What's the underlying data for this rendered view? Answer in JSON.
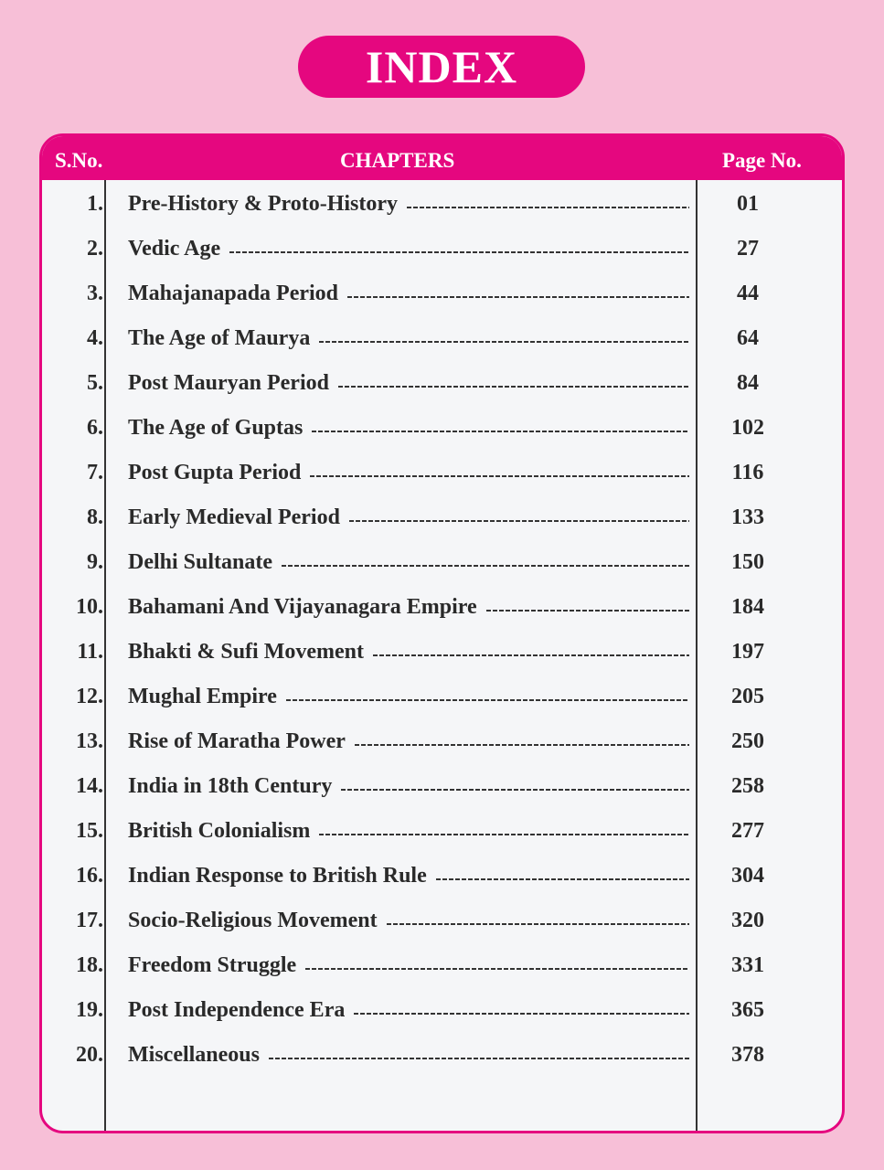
{
  "title": "INDEX",
  "header": {
    "sno": "S.No.",
    "chapters": "CHAPTERS",
    "page": "Page No."
  },
  "colors": {
    "accent": "#e5077f",
    "background": "#f7bfd7",
    "panel": "#f5f6f8"
  },
  "rows": [
    {
      "sno": "1.",
      "chapter": "Pre-History & Proto-History",
      "page": "01"
    },
    {
      "sno": "2.",
      "chapter": "Vedic Age",
      "page": "27"
    },
    {
      "sno": "3.",
      "chapter": "Mahajanapada Period",
      "page": "44"
    },
    {
      "sno": "4.",
      "chapter": "The Age of Maurya",
      "page": "64"
    },
    {
      "sno": "5.",
      "chapter": "Post Mauryan Period",
      "page": "84"
    },
    {
      "sno": "6.",
      "chapter": "The Age of Guptas",
      "page": "102"
    },
    {
      "sno": "7.",
      "chapter": "Post Gupta Period",
      "page": "116"
    },
    {
      "sno": "8.",
      "chapter": "Early Medieval Period",
      "page": "133"
    },
    {
      "sno": "9.",
      "chapter": "Delhi Sultanate",
      "page": "150"
    },
    {
      "sno": "10.",
      "chapter": "Bahamani And Vijayanagara Empire",
      "page": "184"
    },
    {
      "sno": "11.",
      "chapter": "Bhakti & Sufi Movement",
      "page": "197"
    },
    {
      "sno": "12.",
      "chapter": "Mughal Empire",
      "page": "205"
    },
    {
      "sno": "13.",
      "chapter": "Rise of Maratha Power",
      "page": "250"
    },
    {
      "sno": "14.",
      "chapter": "India in 18th Century",
      "page": "258"
    },
    {
      "sno": "15.",
      "chapter": "British Colonialism",
      "page": "277"
    },
    {
      "sno": "16.",
      "chapter": "Indian Response to British Rule",
      "page": "304"
    },
    {
      "sno": "17.",
      "chapter": "Socio-Religious Movement",
      "page": "320"
    },
    {
      "sno": "18.",
      "chapter": "Freedom Struggle",
      "page": "331"
    },
    {
      "sno": "19.",
      "chapter": "Post Independence Era",
      "page": "365"
    },
    {
      "sno": "20.",
      "chapter": "Miscellaneous",
      "page": "378"
    }
  ]
}
